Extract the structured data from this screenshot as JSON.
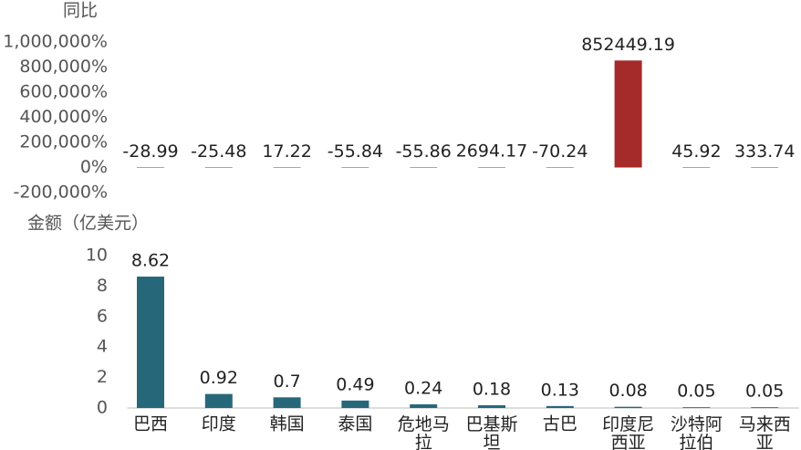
{
  "chart_data": [
    {
      "type": "bar",
      "y_label": "同比",
      "values": [
        -28.99,
        -25.48,
        17.22,
        -55.84,
        -55.86,
        2694.17,
        -70.24,
        852449.19,
        45.92,
        333.74
      ],
      "colors": [
        "#a52a2a"
      ],
      "color": "#a52a2a",
      "ylim": [
        -200000,
        1000000
      ],
      "yticks": [
        {
          "value": -200000,
          "label": "-200,000%"
        },
        {
          "value": 0,
          "label": "0%"
        },
        {
          "value": 200000,
          "label": "200,000%"
        },
        {
          "value": 400000,
          "label": "400,000%"
        },
        {
          "value": 600000,
          "label": "600,000%"
        },
        {
          "value": 800000,
          "label": "800,000%"
        },
        {
          "value": 1000000,
          "label": "1,000,000%"
        }
      ],
      "grid": false
    },
    {
      "type": "bar",
      "y_label": "金额（亿美元）",
      "categories": [
        "巴西",
        "印度",
        "韩国",
        "泰国",
        "危地马拉",
        "巴基斯坦",
        "古巴",
        "印度尼西亚",
        "沙特阿拉伯",
        "马来西亚"
      ],
      "values": [
        8.62,
        0.92,
        0.7,
        0.49,
        0.24,
        0.18,
        0.13,
        0.08,
        0.05,
        0.05
      ],
      "color": "#26687a",
      "ylim": [
        0,
        10
      ],
      "yticks": [
        0,
        2,
        4,
        6,
        8,
        10
      ],
      "grid": false
    }
  ]
}
